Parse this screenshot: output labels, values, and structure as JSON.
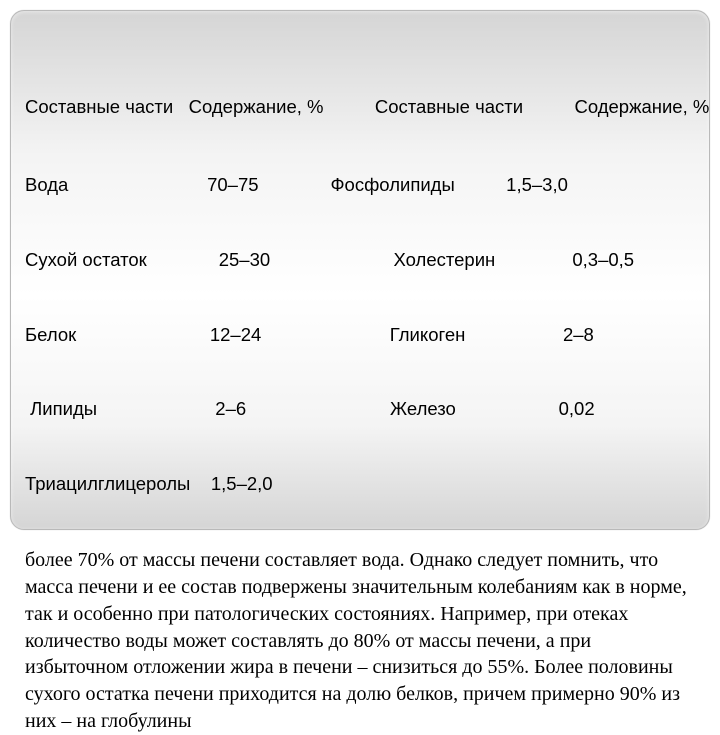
{
  "header_line": "Составные части   Содержание, %          Составные части          Содержание, %",
  "rows": [
    "Вода                           70–75              Фосфолипиды          1,5–3,0",
    "Сухой остаток              25–30                        Холестерин               0,3–0,5",
    "Белок                          12–24                         Гликоген                   2–8",
    " Липиды                       2–6                            Железо                    0,02",
    "Триацилглицеролы    1,5–2,0"
  ],
  "paragraph": "более 70% от массы печени составляет вода. Однако следует помнить, что масса печени и ее состав подвержены значительным колебаниям как в норме, так и особенно при патологических состояниях. Например, при отеках количество воды может составлять до 80% от массы печени, а при избыточном отложении жира в печени – снизиться до 55%. Более половины сухого остатка печени приходится на долю белков, причем примерно 90% из них – на глобулины",
  "colors": {
    "text": "#000000",
    "gradient_top": "#d5d5d5",
    "gradient_mid": "#ffffff",
    "gradient_bottom": "#d5d5d5",
    "border": "#b9b9b9"
  },
  "fonts": {
    "table": "Arial, sans-serif",
    "body": "Georgia, 'Times New Roman', serif",
    "table_size": 18.5,
    "body_size": 20
  }
}
